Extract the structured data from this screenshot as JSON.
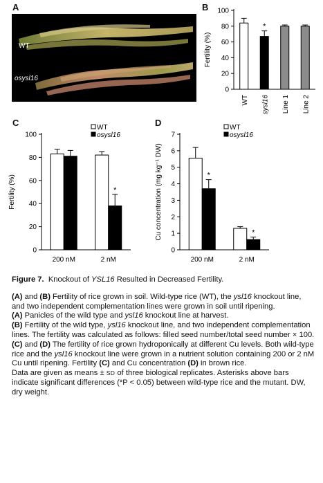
{
  "panels": {
    "a": {
      "letter": "A",
      "wt_label": "WT",
      "mutant_label": "osysl16"
    },
    "b": {
      "letter": "B"
    },
    "c": {
      "letter": "C"
    },
    "d": {
      "letter": "D"
    }
  },
  "chart_data": [
    {
      "panel": "B",
      "type": "bar",
      "ylabel": "Fertility (%)",
      "ylim": [
        0,
        100
      ],
      "yticks": [
        0,
        20,
        40,
        60,
        80,
        100
      ],
      "categories": [
        "WT",
        "osysl16",
        "Line 1",
        "Line 2"
      ],
      "values": [
        84,
        67,
        80,
        80
      ],
      "errors": [
        6,
        7,
        1.5,
        1.5
      ],
      "bar_colors": [
        "#ffffff",
        "#000000",
        "#8c8c8c",
        "#8c8c8c"
      ],
      "significance": [
        "",
        "*",
        "",
        ""
      ]
    },
    {
      "panel": "C",
      "type": "bar",
      "ylabel": "Fertility (%)",
      "ylim": [
        0,
        100
      ],
      "yticks": [
        0,
        20,
        40,
        60,
        80,
        100
      ],
      "categories": [
        "200 nM",
        "2 nM"
      ],
      "legend": [
        "WT",
        "osysl16"
      ],
      "series": [
        {
          "name": "WT",
          "color": "#ffffff",
          "values": [
            83,
            82
          ],
          "errors": [
            4,
            3
          ]
        },
        {
          "name": "osysl16",
          "color": "#000000",
          "values": [
            81,
            38
          ],
          "errors": [
            5,
            10
          ],
          "significance": [
            "",
            "*"
          ]
        }
      ]
    },
    {
      "panel": "D",
      "type": "bar",
      "ylabel": "Cu concentration (mg kg⁻¹ DW)",
      "ylim": [
        0,
        7
      ],
      "yticks": [
        0,
        1,
        2,
        3,
        4,
        5,
        6,
        7
      ],
      "categories": [
        "200 nM",
        "2 nM"
      ],
      "legend": [
        "WT",
        "osysl16"
      ],
      "series": [
        {
          "name": "WT",
          "color": "#ffffff",
          "values": [
            5.55,
            1.3
          ],
          "errors": [
            0.65,
            0.1
          ]
        },
        {
          "name": "osysl16",
          "color": "#000000",
          "values": [
            3.7,
            0.62
          ],
          "errors": [
            0.55,
            0.15
          ],
          "significance": [
            "*",
            "*"
          ]
        }
      ]
    }
  ],
  "caption": {
    "fig_label": "Figure 7.",
    "title_pre": "Knockout of ",
    "title_gene": "YSL16",
    "title_post": " Resulted in Decreased Fertility.",
    "p1_a": "(A)",
    "p1_and": " and ",
    "p1_b": "(B)",
    "p1_t1": " Fertility of rice grown in soil. Wild-type rice (WT), the ",
    "p1_gene": "ysl16",
    "p1_t2": " knockout line, and two independent complementation lines were grown in soil until ripening.",
    "p2_a": "(A)",
    "p2_t1": " Panicles of the wild type and ",
    "p2_gene": "ysl16",
    "p2_t2": " knockout line at harvest.",
    "p3_b": "(B)",
    "p3_t1": " Fertility of the wild type, ",
    "p3_gene": "ysl16",
    "p3_t2": " knockout line, and two independent complementation lines. The fertility was calculated as follows: filled seed number/total seed number × 100.",
    "p4_c": "(C)",
    "p4_and": " and ",
    "p4_d": "(D)",
    "p4_t1": " The fertility of rice grown hydroponically at different Cu levels. Both wild-type rice and the ",
    "p4_gene": "ysl16",
    "p4_t2": " knockout line were grown in a nutrient solution containing 200 or 2 nM Cu until ripening. Fertility ",
    "p4_c2": "(C)",
    "p4_t3": " and Cu concentration ",
    "p4_d2": "(D)",
    "p4_t4": " in brown rice.",
    "p5_t1": "Data are given as means ± ",
    "p5_sd": "SD",
    "p5_t2": " of three biological replicates. Asterisks above bars indicate significant differences (*P < 0.05) between wild-type rice and the mutant. DW, dry weight."
  }
}
